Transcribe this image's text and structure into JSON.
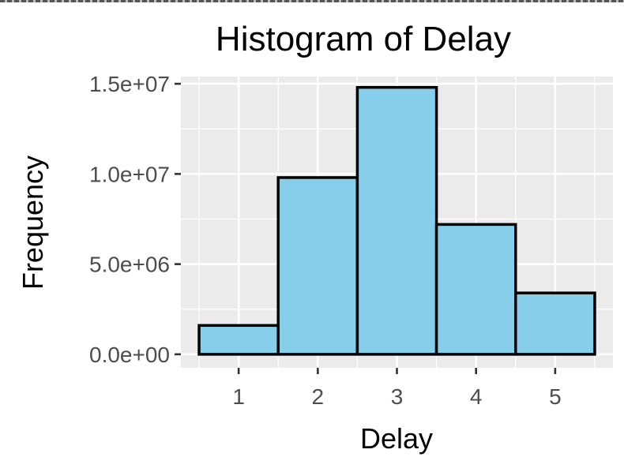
{
  "chart_data": {
    "type": "bar",
    "title": "Histogram of Delay",
    "xlabel": "Delay",
    "ylabel": "Frequency",
    "categories": [
      "1",
      "2",
      "3",
      "4",
      "5"
    ],
    "x": [
      1,
      2,
      3,
      4,
      5
    ],
    "values": [
      1600000,
      9800000,
      14800000,
      7200000,
      3400000
    ],
    "xlim": [
      0.27,
      5.73
    ],
    "ylim": [
      -750000,
      15400000
    ],
    "yticks": [
      0,
      5000000,
      10000000,
      15000000
    ],
    "ytick_labels": [
      "0.0e+00",
      "5.0e+06",
      "1.0e+07",
      "1.5e+07"
    ],
    "xticks": [
      1,
      2,
      3,
      4,
      5
    ],
    "xtick_labels": [
      "1",
      "2",
      "3",
      "4",
      "5"
    ],
    "grid": true,
    "legend": "none",
    "colors": {
      "bar_fill": "#87ceeb",
      "bar_stroke": "#000000",
      "panel_bg": "#ebebeb",
      "grid": "#ffffff",
      "tick_text": "#4d4d4d"
    }
  }
}
